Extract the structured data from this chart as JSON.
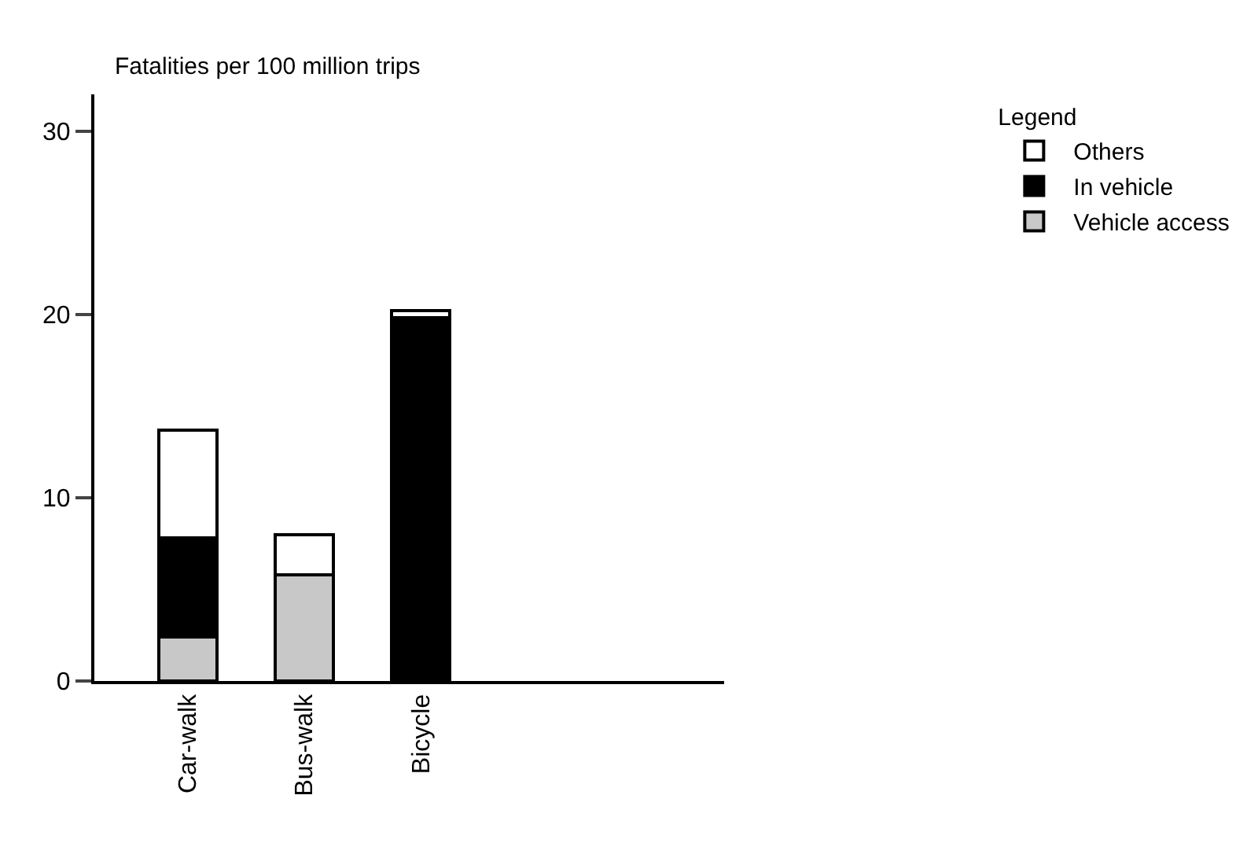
{
  "chart_data": {
    "type": "bar",
    "stacked": true,
    "ylabel": "Fatalities per 100 million trips",
    "legend_title": "Legend",
    "categories": [
      "Car-walk",
      "Bus-walk",
      "Bicycle"
    ],
    "series": [
      {
        "name": "Vehicle access",
        "color": "#c8c8c8",
        "values": [
          2.4,
          5.8,
          0
        ]
      },
      {
        "name": "In vehicle",
        "color": "#000000",
        "values": [
          5.4,
          0,
          19.8
        ]
      },
      {
        "name": "Others",
        "color": "#ffffff",
        "values": [
          5.9,
          2.2,
          0.4
        ]
      }
    ],
    "ylim": [
      0,
      32
    ],
    "yticks": [
      0,
      10,
      20,
      30
    ],
    "grid": false,
    "legend": "top right"
  }
}
